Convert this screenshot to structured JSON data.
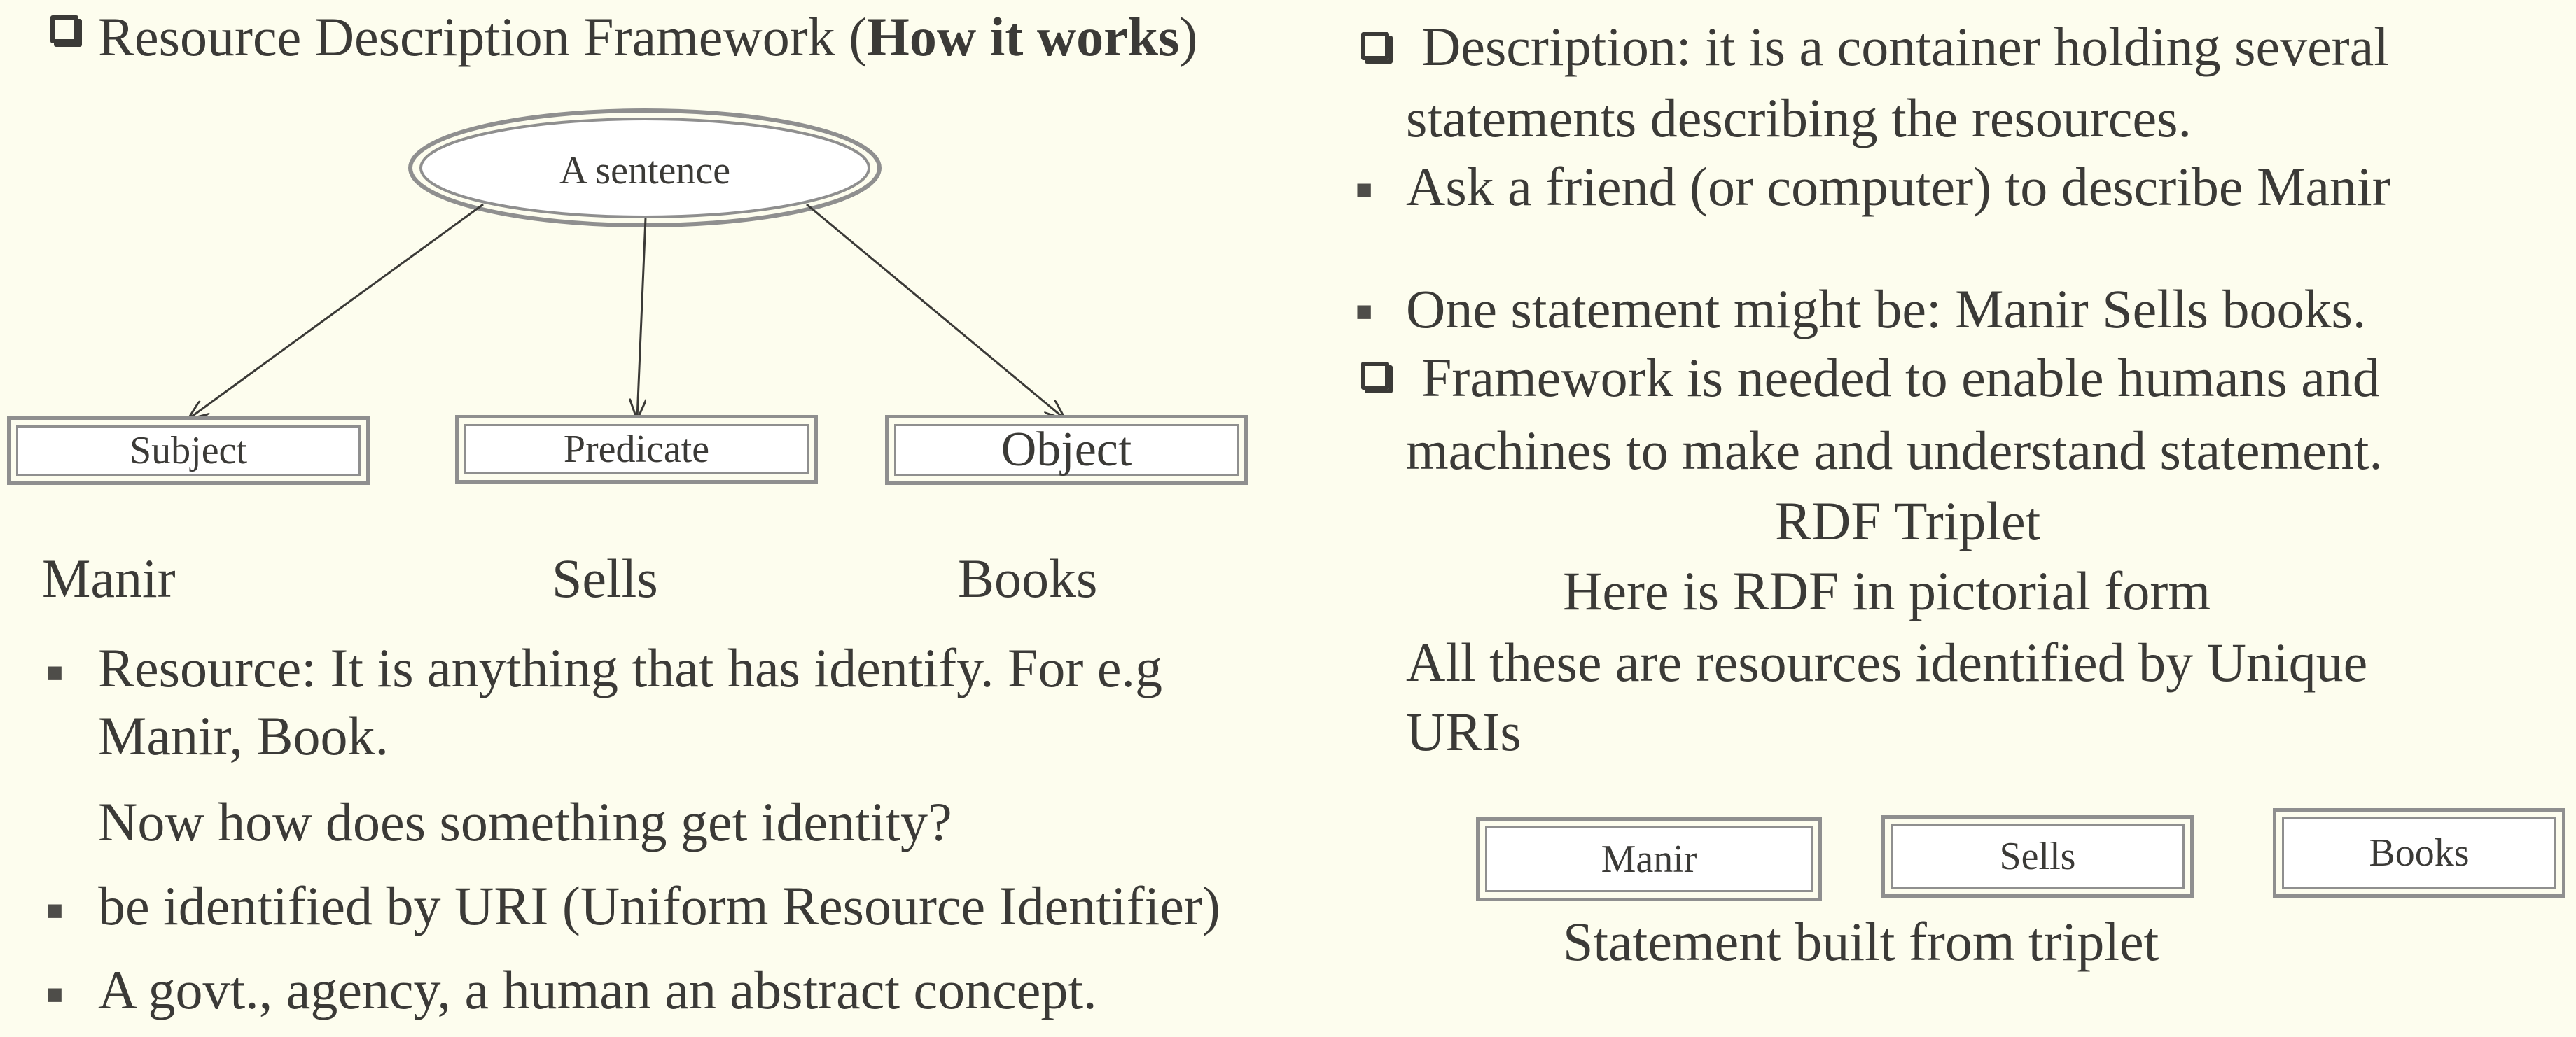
{
  "left": {
    "heading": {
      "prefix": "Resource Description Framework (",
      "bold": "How it works",
      "suffix": ")"
    },
    "diagram": {
      "root": "A sentence",
      "nodes": [
        "Subject",
        "Predicate",
        "Object"
      ]
    },
    "examples": [
      "Manir",
      "Sells",
      "Books"
    ],
    "bullets": {
      "resource_line1": "Resource: It is anything that has identify. For e.g",
      "resource_line2": "Manir, Book.",
      "identity_question": "Now how does something get identity?",
      "uri": "be identified by URI (Uniform Resource Identifier)",
      "govt": "A govt., agency, a human an abstract concept."
    }
  },
  "right": {
    "description_line1": "Description: it is a container holding several",
    "description_line2": "statements describing the resources.",
    "ask_friend": "Ask a friend (or computer) to describe Manir",
    "one_statement": "One statement might be: Manir Sells books.",
    "framework_line1": "Framework is needed to enable humans and",
    "framework_line2": "machines to make and understand statement.",
    "rdf_triplet": "RDF Triplet",
    "pictorial": "Here is RDF in pictorial form",
    "resources_line1": "All these are resources identified by Unique",
    "resources_line2": "URIs",
    "triplet_boxes": [
      "Manir",
      "Sells",
      "Books"
    ],
    "statement_caption": "Statement built from triplet"
  },
  "colors": {
    "background": "#fdfdee",
    "text": "#3b3a37",
    "box_border": "#8f8f8f"
  }
}
